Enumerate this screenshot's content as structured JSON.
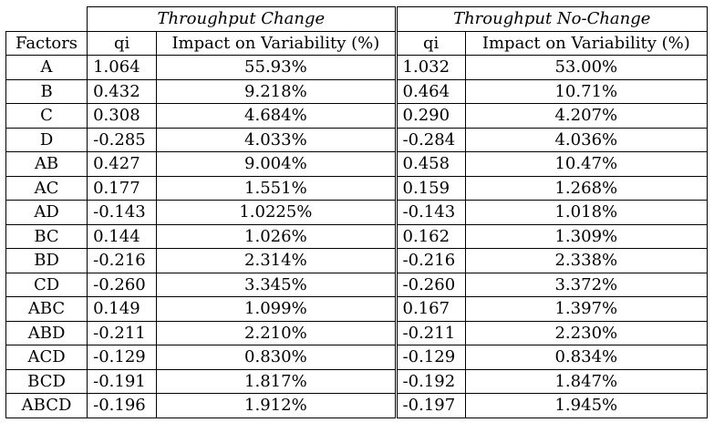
{
  "groups": {
    "change": "Throughput Change",
    "nochange": "Throughput No-Change"
  },
  "columns": {
    "factors": "Factors",
    "qi": "qi",
    "impact": "Impact on Variability (%)"
  },
  "rows": [
    {
      "factor": "A",
      "qi_change": "1.064",
      "impact_change": "55.93%",
      "qi_nochange": "1.032",
      "impact_nochange": "53.00%"
    },
    {
      "factor": "B",
      "qi_change": "0.432",
      "impact_change": "9.218%",
      "qi_nochange": "0.464",
      "impact_nochange": "10.71%"
    },
    {
      "factor": "C",
      "qi_change": "0.308",
      "impact_change": "4.684%",
      "qi_nochange": "0.290",
      "impact_nochange": "4.207%"
    },
    {
      "factor": "D",
      "qi_change": "-0.285",
      "impact_change": "4.033%",
      "qi_nochange": "-0.284",
      "impact_nochange": "4.036%"
    },
    {
      "factor": "AB",
      "qi_change": "0.427",
      "impact_change": "9.004%",
      "qi_nochange": "0.458",
      "impact_nochange": "10.47%"
    },
    {
      "factor": "AC",
      "qi_change": "0.177",
      "impact_change": "1.551%",
      "qi_nochange": "0.159",
      "impact_nochange": "1.268%"
    },
    {
      "factor": "AD",
      "qi_change": "-0.143",
      "impact_change": "1.0225%",
      "qi_nochange": "-0.143",
      "impact_nochange": "1.018%"
    },
    {
      "factor": "BC",
      "qi_change": "0.144",
      "impact_change": "1.026%",
      "qi_nochange": "0.162",
      "impact_nochange": "1.309%"
    },
    {
      "factor": "BD",
      "qi_change": "-0.216",
      "impact_change": "2.314%",
      "qi_nochange": "-0.216",
      "impact_nochange": "2.338%"
    },
    {
      "factor": "CD",
      "qi_change": "-0.260",
      "impact_change": "3.345%",
      "qi_nochange": "-0.260",
      "impact_nochange": "3.372%"
    },
    {
      "factor": "ABC",
      "qi_change": "0.149",
      "impact_change": "1.099%",
      "qi_nochange": "0.167",
      "impact_nochange": "1.397%"
    },
    {
      "factor": "ABD",
      "qi_change": "-0.211",
      "impact_change": "2.210%",
      "qi_nochange": "-0.211",
      "impact_nochange": "2.230%"
    },
    {
      "factor": "ACD",
      "qi_change": "-0.129",
      "impact_change": "0.830%",
      "qi_nochange": "-0.129",
      "impact_nochange": "0.834%"
    },
    {
      "factor": "BCD",
      "qi_change": "-0.191",
      "impact_change": "1.817%",
      "qi_nochange": "-0.192",
      "impact_nochange": "1.847%"
    },
    {
      "factor": "ABCD",
      "qi_change": "-0.196",
      "impact_change": "1.912%",
      "qi_nochange": "-0.197",
      "impact_nochange": "1.945%"
    }
  ]
}
